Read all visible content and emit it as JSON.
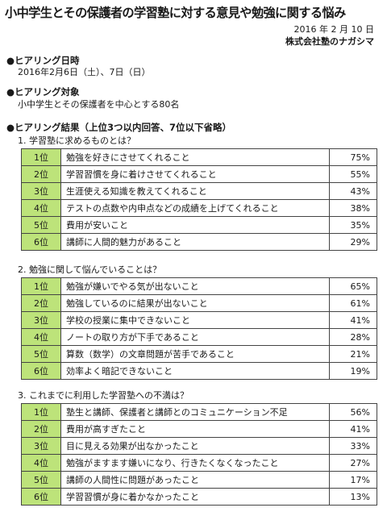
{
  "header": {
    "title": "小中学生とその保護者の学習塾に対する意見や勉強に関する悩み",
    "date": "2016 年 2 月 10 日",
    "company": "株式会社塾のナガシマ"
  },
  "sections": {
    "dates": {
      "heading": "●ヒアリング日時",
      "text": "2016年2月6日（土）、7日（日）"
    },
    "target": {
      "heading": "●ヒアリング対象",
      "text": "小中学生とその保護者を中心とする80名"
    },
    "results": {
      "heading": "●ヒアリング結果（上位3つ以内回答、7位以下省略）"
    }
  },
  "questions": [
    {
      "title": "1. 学習塾に求めるものとは？",
      "rows": [
        {
          "rank": "1位",
          "text": "勉強を好きにさせてくれること",
          "pct": "75%"
        },
        {
          "rank": "2位",
          "text": "学習習慣を身に着けさせてくれること",
          "pct": "55%"
        },
        {
          "rank": "3位",
          "text": "生涯使える知識を教えてくれること",
          "pct": "43%"
        },
        {
          "rank": "4位",
          "text": "テストの点数や内申点などの成績を上げてくれること",
          "pct": "38%"
        },
        {
          "rank": "5位",
          "text": "費用が安いこと",
          "pct": "35%"
        },
        {
          "rank": "6位",
          "text": "講師に人間的魅力があること",
          "pct": "29%"
        }
      ]
    },
    {
      "title": "2. 勉強に関して悩んでいることは？",
      "rows": [
        {
          "rank": "1位",
          "text": "勉強が嫌いでやる気が出ないこと",
          "pct": "65%"
        },
        {
          "rank": "2位",
          "text": "勉強しているのに結果が出ないこと",
          "pct": "61%"
        },
        {
          "rank": "3位",
          "text": "学校の授業に集中できないこと",
          "pct": "41%"
        },
        {
          "rank": "4位",
          "text": "ノートの取り方が下手であること",
          "pct": "28%"
        },
        {
          "rank": "5位",
          "text": "算数（数学）の文章問題が苦手であること",
          "pct": "21%"
        },
        {
          "rank": "6位",
          "text": "効率よく暗記できないこと",
          "pct": "19%"
        }
      ]
    },
    {
      "title": "3. これまでに利用した学習塾への不満は？",
      "rows": [
        {
          "rank": "1位",
          "text": "塾生と講師、保護者と講師とのコミュニケーション不足",
          "pct": "56%"
        },
        {
          "rank": "2位",
          "text": "費用が高すぎたこと",
          "pct": "41%"
        },
        {
          "rank": "3位",
          "text": "目に見える効果が出なかったこと",
          "pct": "33%"
        },
        {
          "rank": "4位",
          "text": "勉強がますます嫌いになり、行きたくなくなったこと",
          "pct": "27%"
        },
        {
          "rank": "5位",
          "text": "講師の人間性に問題があったこと",
          "pct": "17%"
        },
        {
          "rank": "6位",
          "text": "学習習慣が身に着かなかったこと",
          "pct": "13%"
        }
      ]
    }
  ]
}
